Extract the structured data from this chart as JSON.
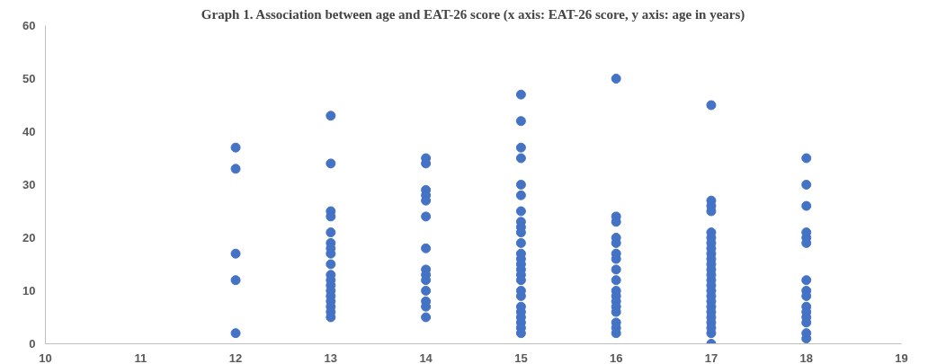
{
  "chart_data": {
    "type": "scatter",
    "title": "Graph 1. Association between age and EAT-26 score (x axis: EAT-26 score, y axis: age in years)",
    "series": [
      {
        "color": "#4472c4",
        "x": [
          12,
          12,
          12,
          12,
          12,
          13,
          13,
          13,
          13,
          13,
          13,
          13,
          13,
          13,
          13,
          13,
          13,
          13,
          13,
          13,
          13,
          13,
          13,
          14,
          14,
          14,
          14,
          14,
          14,
          14,
          14,
          14,
          14,
          14,
          14,
          14,
          14,
          15,
          15,
          15,
          15,
          15,
          15,
          15,
          15,
          15,
          15,
          15,
          15,
          15,
          15,
          15,
          15,
          15,
          15,
          15,
          15,
          15,
          15,
          15,
          15,
          15,
          16,
          16,
          16,
          16,
          16,
          16,
          16,
          16,
          16,
          16,
          16,
          16,
          16,
          16,
          16,
          16,
          16,
          17,
          17,
          17,
          17,
          17,
          17,
          17,
          17,
          17,
          17,
          17,
          17,
          17,
          17,
          17,
          17,
          17,
          17,
          17,
          17,
          17,
          17,
          17,
          17,
          17,
          18,
          18,
          18,
          18,
          18,
          18,
          18,
          18,
          18,
          18,
          18,
          18,
          18,
          18,
          18
        ],
        "values": [
          37,
          33,
          17,
          12,
          2,
          43,
          34,
          25,
          24,
          21,
          19,
          18,
          17,
          15,
          13,
          12,
          11,
          10,
          9,
          8,
          7,
          6,
          5,
          35,
          34,
          29,
          28,
          27,
          24,
          18,
          14,
          13,
          12,
          10,
          8,
          7,
          5,
          47,
          42,
          37,
          35,
          30,
          28,
          25,
          23,
          22,
          21,
          19,
          17,
          16,
          15,
          14,
          13,
          12,
          10,
          9,
          7,
          6,
          5,
          4,
          3,
          2,
          50,
          24,
          23,
          20,
          19,
          17,
          16,
          14,
          12,
          10,
          9,
          8,
          7,
          6,
          4,
          3,
          2,
          45,
          27,
          26,
          25,
          21,
          20,
          19,
          18,
          17,
          16,
          15,
          14,
          13,
          12,
          11,
          10,
          9,
          8,
          7,
          6,
          5,
          4,
          3,
          2,
          0,
          35,
          30,
          26,
          21,
          20,
          19,
          12,
          10,
          9,
          7,
          6,
          5,
          4,
          2,
          1
        ]
      }
    ],
    "xlim": [
      10,
      19
    ],
    "xticks": [
      10,
      11,
      12,
      13,
      14,
      15,
      16,
      17,
      18,
      19
    ],
    "ylim": [
      0,
      60
    ],
    "yticks": [
      0,
      10,
      20,
      30,
      40,
      50,
      60
    ],
    "grid": false,
    "marker": "circle"
  }
}
